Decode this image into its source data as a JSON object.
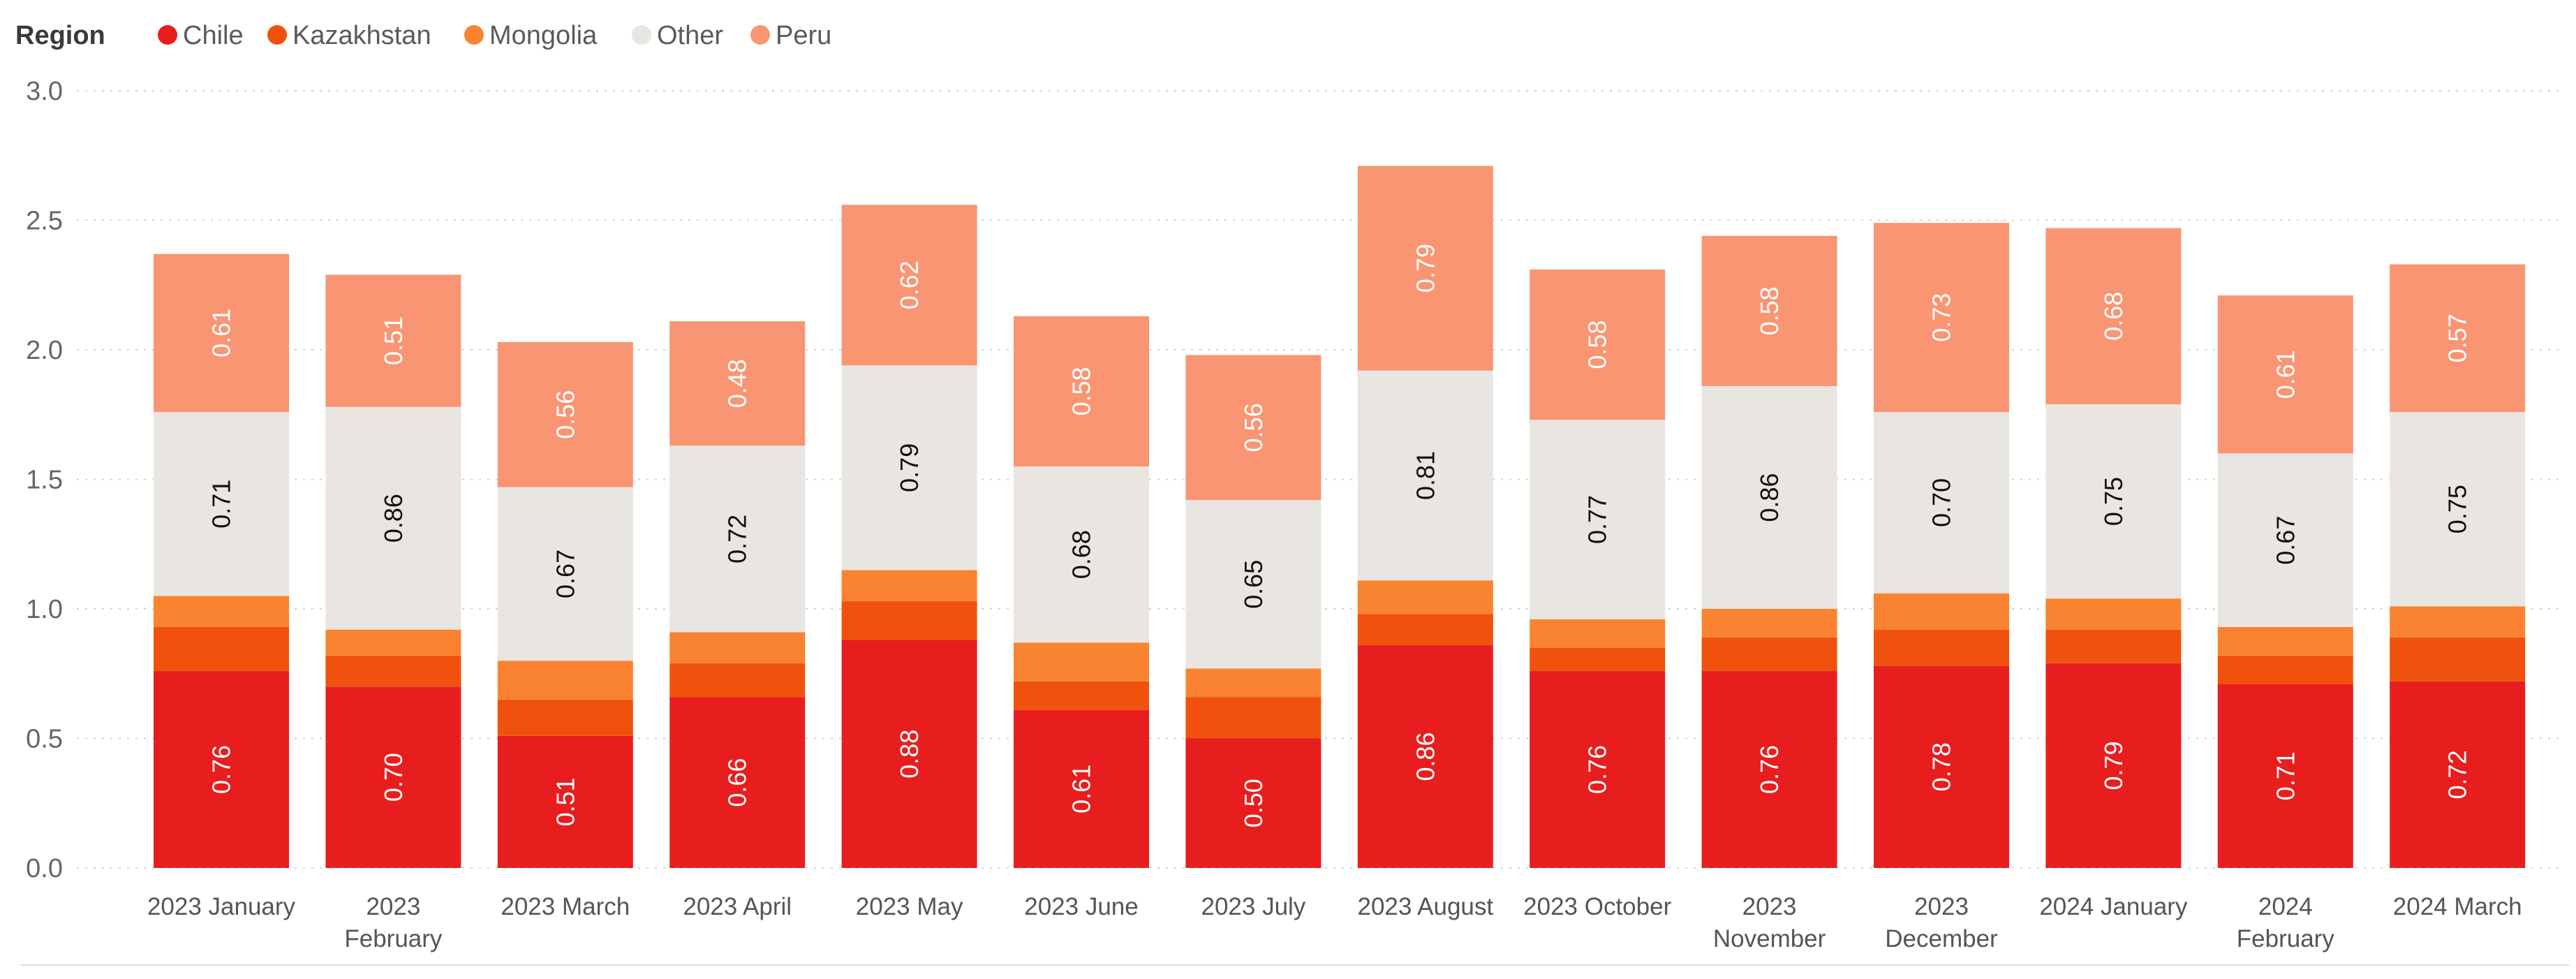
{
  "chart_data": {
    "type": "bar",
    "stacked": true,
    "legend": {
      "title": "Region",
      "position": "top-left"
    },
    "categories": [
      "2023 January",
      "2023 February",
      "2023 March",
      "2023 April",
      "2023 May",
      "2023 June",
      "2023 July",
      "2023 August",
      "2023 October",
      "2023 November",
      "2023 December",
      "2024 January",
      "2024 February",
      "2024 March"
    ],
    "series": [
      {
        "name": "Chile",
        "color": "#E81E1E",
        "label_color": "#ffffff",
        "show_labels": true,
        "values": [
          0.76,
          0.7,
          0.51,
          0.66,
          0.88,
          0.61,
          0.5,
          0.86,
          0.76,
          0.76,
          0.78,
          0.79,
          0.71,
          0.72
        ]
      },
      {
        "name": "Kazakhstan",
        "color": "#F0520E",
        "label_color": "#ffffff",
        "show_labels": false,
        "values": [
          0.17,
          0.12,
          0.14,
          0.13,
          0.15,
          0.11,
          0.16,
          0.12,
          0.09,
          0.13,
          0.14,
          0.13,
          0.11,
          0.17
        ]
      },
      {
        "name": "Mongolia",
        "color": "#F98330",
        "label_color": "#ffffff",
        "show_labels": false,
        "values": [
          0.12,
          0.1,
          0.15,
          0.12,
          0.12,
          0.15,
          0.11,
          0.13,
          0.11,
          0.11,
          0.14,
          0.12,
          0.11,
          0.12
        ]
      },
      {
        "name": "Other",
        "color": "#E9E5E0",
        "label_color": "#111111",
        "show_labels": true,
        "values": [
          0.71,
          0.86,
          0.67,
          0.72,
          0.79,
          0.68,
          0.65,
          0.81,
          0.77,
          0.86,
          0.7,
          0.75,
          0.67,
          0.75
        ]
      },
      {
        "name": "Peru",
        "color": "#F99573",
        "label_color": "#ffffff",
        "show_labels": true,
        "values": [
          0.61,
          0.51,
          0.56,
          0.48,
          0.62,
          0.58,
          0.56,
          0.79,
          0.58,
          0.58,
          0.73,
          0.68,
          0.61,
          0.57
        ]
      }
    ],
    "category_labels": [
      [
        "2023 January"
      ],
      [
        "2023",
        "February"
      ],
      [
        "2023 March"
      ],
      [
        "2023 April"
      ],
      [
        "2023 May"
      ],
      [
        "2023 June"
      ],
      [
        "2023 July"
      ],
      [
        "2023 August"
      ],
      [
        "2023 October"
      ],
      [
        "2023",
        "November"
      ],
      [
        "2023",
        "December"
      ],
      [
        "2024 January"
      ],
      [
        "2024",
        "February"
      ],
      [
        "2024 March"
      ]
    ],
    "y_ticks": [
      "0.0",
      "0.5",
      "1.0",
      "1.5",
      "2.0",
      "2.5",
      "3.0"
    ],
    "ylim": [
      0,
      3.0
    ],
    "grid": true,
    "xlabel": "",
    "ylabel": ""
  }
}
